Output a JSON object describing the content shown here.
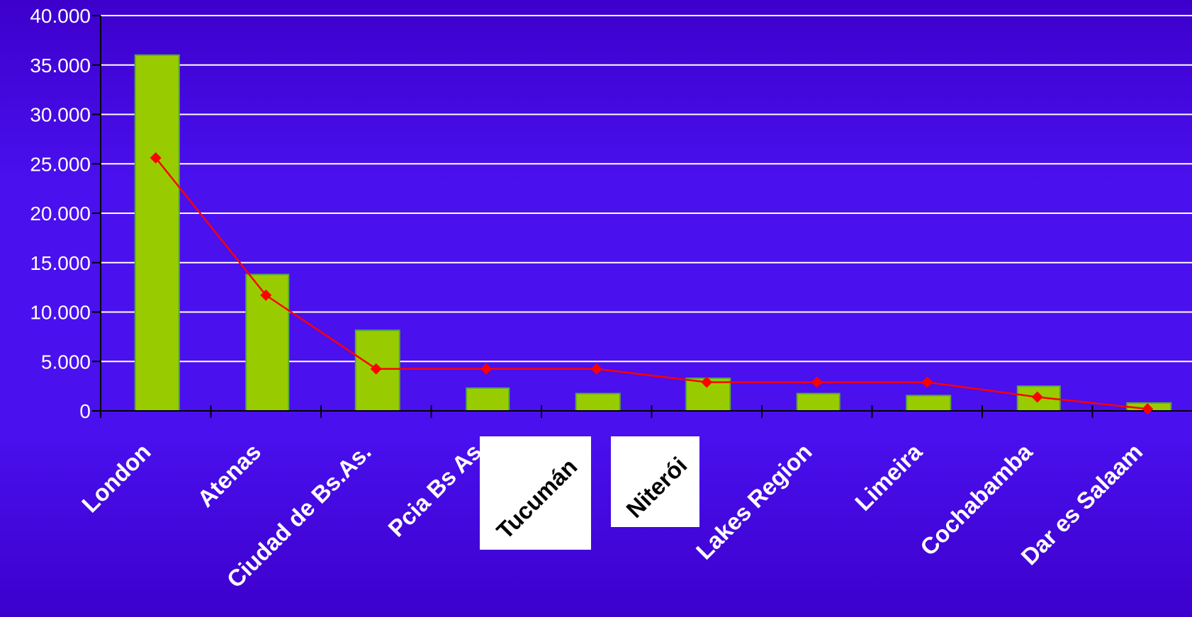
{
  "chart_data": {
    "type": "bar",
    "categories": [
      "London",
      "Atenas",
      "Ciudad de Bs.As.",
      "Pcia Bs As",
      "Tucumán",
      "Niterói",
      "Lakes Region",
      "Limeira",
      "Cochabamba",
      "Dar es Salaam"
    ],
    "boxed_categories": [
      "Tucumán",
      "Niterói"
    ],
    "series": [
      {
        "type": "bar",
        "values": [
          36000,
          13800,
          8150,
          2300,
          1750,
          3300,
          1750,
          1550,
          2500,
          800
        ],
        "color": "#99cc00"
      },
      {
        "type": "line",
        "values": [
          25600,
          11700,
          4250,
          4250,
          4250,
          2900,
          2900,
          2900,
          1400,
          200
        ],
        "color": "#ff0000"
      }
    ],
    "yticks": [
      "0",
      "5.000",
      "10.000",
      "15.000",
      "20.000",
      "25.000",
      "30.000",
      "35.000",
      "40.000"
    ],
    "ylim": [
      0,
      40000
    ],
    "grid": true,
    "title": "",
    "xlabel": "",
    "ylabel": ""
  }
}
